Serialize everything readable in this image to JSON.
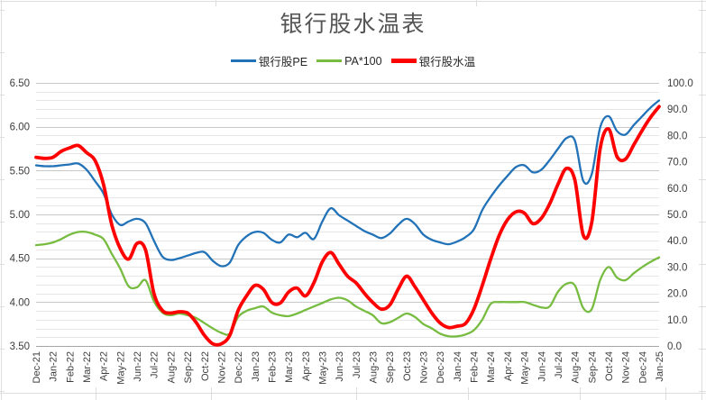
{
  "title": "银行股水温表",
  "chart_data": {
    "type": "line",
    "title": "银行股水温表",
    "legend_position": "top",
    "grid": true,
    "x_sampling": "semi-monthly (2 points per month label)",
    "x_labels": [
      "Dec-21",
      "Jan-22",
      "Feb-22",
      "Mar-22",
      "Apr-22",
      "May-22",
      "Jun-22",
      "Jul-22",
      "Aug-22",
      "Sep-22",
      "Oct-22",
      "Nov-22",
      "Dec-22",
      "Jan-23",
      "Feb-23",
      "Mar-23",
      "Apr-23",
      "May-23",
      "Jun-23",
      "Jul-23",
      "Aug-23",
      "Sep-23",
      "Oct-23",
      "Nov-23",
      "Dec-23",
      "Jan-24",
      "Feb-24",
      "Mar-24",
      "Apr-24",
      "May-24",
      "Jun-24",
      "Jul-24",
      "Aug-24",
      "Sep-24",
      "Oct-24",
      "Nov-24",
      "Dec-24",
      "Jan-25"
    ],
    "axes": {
      "left": {
        "min": 3.5,
        "max": 6.5,
        "major_step": 0.5,
        "minor_step": 0.1,
        "tick_labels": [
          "6.50",
          "6.00",
          "5.50",
          "5.00",
          "4.50",
          "4.00",
          "3.50"
        ]
      },
      "right": {
        "min": 0,
        "max": 100,
        "step": 10,
        "tick_labels": [
          "100.0",
          "90.0",
          "80.0",
          "70.0",
          "60.0",
          "50.0",
          "40.0",
          "30.0",
          "20.0",
          "10.0",
          "0.0"
        ]
      }
    },
    "series": [
      {
        "name": "银行股PE",
        "id": "bank-pe",
        "axis": "left",
        "color": "#2272B8",
        "width": 2.3,
        "values": [
          5.56,
          5.55,
          5.55,
          5.56,
          5.57,
          5.58,
          5.51,
          5.38,
          5.24,
          5.0,
          4.88,
          4.92,
          4.95,
          4.9,
          4.7,
          4.52,
          4.48,
          4.5,
          4.53,
          4.56,
          4.57,
          4.47,
          4.41,
          4.45,
          4.65,
          4.75,
          4.8,
          4.79,
          4.71,
          4.68,
          4.77,
          4.74,
          4.79,
          4.72,
          4.92,
          5.07,
          4.99,
          4.93,
          4.87,
          4.81,
          4.77,
          4.73,
          4.78,
          4.88,
          4.95,
          4.89,
          4.77,
          4.71,
          4.68,
          4.66,
          4.69,
          4.74,
          4.83,
          5.05,
          5.2,
          5.33,
          5.44,
          5.54,
          5.56,
          5.48,
          5.51,
          5.62,
          5.75,
          5.87,
          5.84,
          5.38,
          5.46,
          5.99,
          6.12,
          5.95,
          5.91,
          6.02,
          6.12,
          6.22,
          6.3
        ]
      },
      {
        "name": "PA*100",
        "id": "pa-x100",
        "axis": "left",
        "color": "#77BC41",
        "width": 2.3,
        "values": [
          4.65,
          4.66,
          4.68,
          4.72,
          4.77,
          4.8,
          4.8,
          4.77,
          4.72,
          4.55,
          4.38,
          4.18,
          4.17,
          4.25,
          4.01,
          3.88,
          3.85,
          3.87,
          3.85,
          3.82,
          3.76,
          3.7,
          3.65,
          3.64,
          3.83,
          3.9,
          3.93,
          3.95,
          3.88,
          3.85,
          3.84,
          3.87,
          3.91,
          3.95,
          3.99,
          4.03,
          4.05,
          4.02,
          3.95,
          3.9,
          3.85,
          3.76,
          3.77,
          3.82,
          3.87,
          3.83,
          3.75,
          3.7,
          3.64,
          3.61,
          3.61,
          3.63,
          3.68,
          3.8,
          3.98,
          4.0,
          4.0,
          4.0,
          4.0,
          3.97,
          3.94,
          3.95,
          4.12,
          4.21,
          4.19,
          3.93,
          3.92,
          4.25,
          4.4,
          4.28,
          4.25,
          4.33,
          4.4,
          4.46,
          4.51
        ]
      },
      {
        "name": "银行股水温",
        "id": "bank-water-temp",
        "axis": "right",
        "color": "#FF0000",
        "width": 3.8,
        "values": [
          71.7,
          71.3,
          71.7,
          74.0,
          75.3,
          76.2,
          73.5,
          70.5,
          61.5,
          46.0,
          37.0,
          33.0,
          39.0,
          36.5,
          20.0,
          13.5,
          12.5,
          13.0,
          12.5,
          9.0,
          4.0,
          0.8,
          0.8,
          4.0,
          13.5,
          19.0,
          23.0,
          21.5,
          16.5,
          16.3,
          20.5,
          22.0,
          19.0,
          24.0,
          32.0,
          35.5,
          31.0,
          26.5,
          24.0,
          20.0,
          16.5,
          14.0,
          15.5,
          21.5,
          26.5,
          22.5,
          17.5,
          12.5,
          8.7,
          7.0,
          7.5,
          8.5,
          14.0,
          23.0,
          33.0,
          42.0,
          48.0,
          51.0,
          50.5,
          46.5,
          48.5,
          54.0,
          61.5,
          67.5,
          63.0,
          42.0,
          47.0,
          75.0,
          82.5,
          72.0,
          71.0,
          76.5,
          82.0,
          87.0,
          91.0
        ]
      }
    ]
  },
  "colors": {
    "grid_minor": "#E6E6E6",
    "grid_major": "#C8C8C8",
    "axis_line": "#A6A6A6",
    "tick_text": "#3D3D3D",
    "title_text": "#555555",
    "sheet_gridline": "#DEDEDE"
  }
}
